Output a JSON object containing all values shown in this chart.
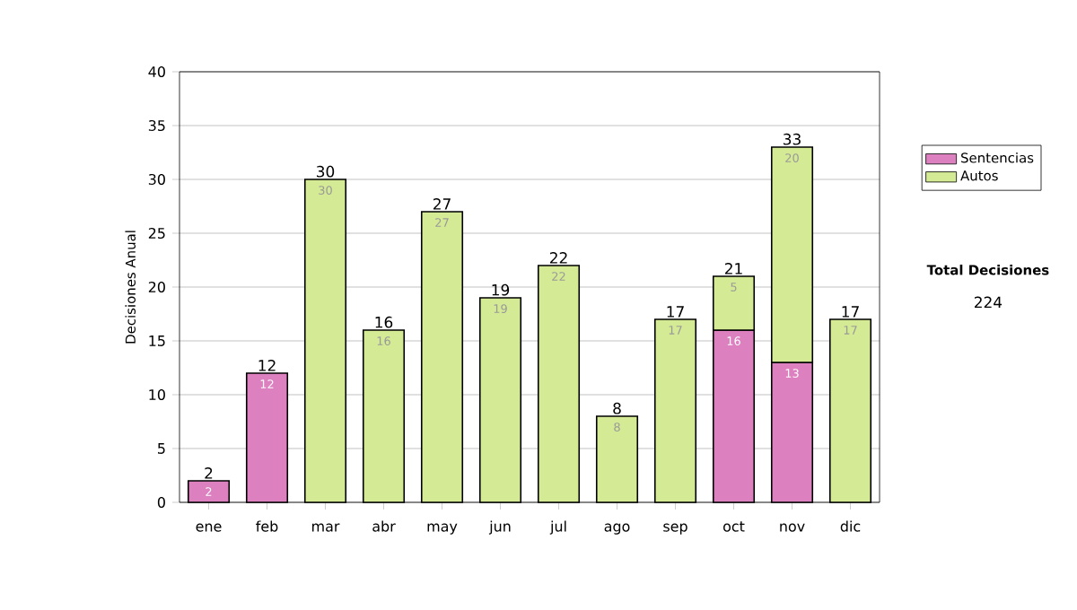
{
  "chart_data": {
    "type": "bar",
    "stacked": true,
    "ylabel": "Decisiones Anual",
    "categories": [
      "ene",
      "feb",
      "mar",
      "abr",
      "may",
      "jun",
      "jul",
      "ago",
      "sep",
      "oct",
      "nov",
      "dic"
    ],
    "series": [
      {
        "name": "Sentencias",
        "color": "#dd80c0",
        "values": [
          2,
          12,
          null,
          null,
          null,
          null,
          null,
          null,
          null,
          16,
          13,
          null
        ]
      },
      {
        "name": "Autos",
        "color": "#d4ea94",
        "values": [
          null,
          null,
          30,
          16,
          27,
          19,
          22,
          8,
          17,
          5,
          20,
          17
        ]
      }
    ],
    "totals": [
      "2",
      "12",
      "30",
      "16",
      "27",
      "19",
      "22",
      "8",
      "17",
      "21",
      "33",
      "17"
    ],
    "data_labels": true,
    "ylim": [
      0,
      40
    ],
    "yticks": [
      0,
      5,
      10,
      15,
      20,
      25,
      30,
      35,
      40
    ],
    "grid": "y",
    "legend": "right",
    "annotations": [
      "Total Decisiones",
      "224"
    ]
  }
}
